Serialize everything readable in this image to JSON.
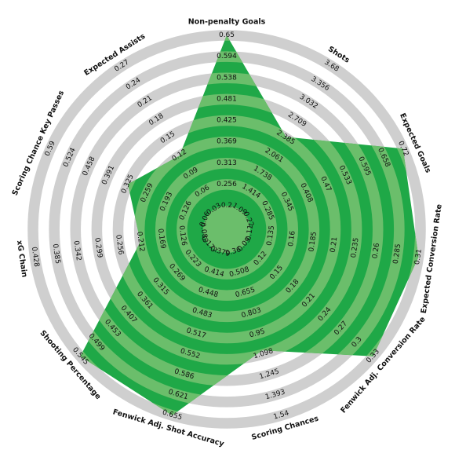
{
  "chart_data": {
    "type": "radar",
    "colors": {
      "band_dark": "#cfcfcf",
      "band_light": "#ffffff",
      "shape": "#1fa847",
      "shape_on_band": "#6bbe6b"
    },
    "axes": [
      {
        "label": "Non-penalty Goals",
        "ticks": [
          "0.2",
          "0.256",
          "0.313",
          "0.369",
          "0.425",
          "0.481",
          "0.538",
          "0.594",
          "0.65"
        ]
      },
      {
        "label": "Shots",
        "ticks": [
          "1.09",
          "1.414",
          "1.738",
          "2.061",
          "2.385",
          "2.709",
          "3.032",
          "3.356",
          "3.68"
        ]
      },
      {
        "label": "Expected Goals",
        "ticks": [
          "0.22",
          "0.285",
          "0.345",
          "0.408",
          "0.47",
          "0.533",
          "0.595",
          "0.658",
          "0.72"
        ]
      },
      {
        "label": "Expected Conversion Rate",
        "ticks": [
          "0.11",
          "0.135",
          "0.16",
          "0.185",
          "0.21",
          "0.235",
          "0.26",
          "0.285",
          "0.31"
        ]
      },
      {
        "label": "Fenwick Adj. Conversion Rate",
        "ticks": [
          "0.09",
          "0.12",
          "0.15",
          "0.18",
          "0.21",
          "0.24",
          "0.27",
          "0.3",
          "0.33"
        ]
      },
      {
        "label": "Scoring Chances",
        "ticks": [
          "0.36",
          "0.508",
          "0.655",
          "0.803",
          "0.95",
          "1.098",
          "1.245",
          "1.393",
          "1.54"
        ]
      },
      {
        "label": "Fenwick Adj. Shot Accuracy",
        "ticks": [
          "0.379",
          "0.414",
          "0.448",
          "0.483",
          "0.517",
          "0.552",
          "0.586",
          "0.621",
          "0.655"
        ]
      },
      {
        "label": "Shooting Percentage",
        "ticks": [
          "0.177",
          "0.223",
          "0.269",
          "0.315",
          "0.361",
          "0.407",
          "0.453",
          "0.499",
          "0.545"
        ]
      },
      {
        "label": "xG Chain",
        "ticks": [
          "0.083",
          "0.126",
          "0.169",
          "0.212",
          "0.256",
          "0.299",
          "0.342",
          "0.385",
          "0.428"
        ]
      },
      {
        "label": "Scoring Chance Key Passes",
        "ticks": [
          "0.06",
          "0.126",
          "0.193",
          "0.259",
          "0.325",
          "0.391",
          "0.458",
          "0.524",
          "0.59"
        ]
      },
      {
        "label": "Expected Assists",
        "ticks": [
          "0.03",
          "0.06",
          "0.09",
          "0.12",
          "0.15",
          "0.18",
          "0.21",
          "0.24",
          "0.27"
        ]
      }
    ],
    "values": [
      0.65,
      2.4,
      0.72,
      0.31,
      0.33,
      1.07,
      0.655,
      0.545,
      0.212,
      0.325,
      0.12
    ]
  }
}
